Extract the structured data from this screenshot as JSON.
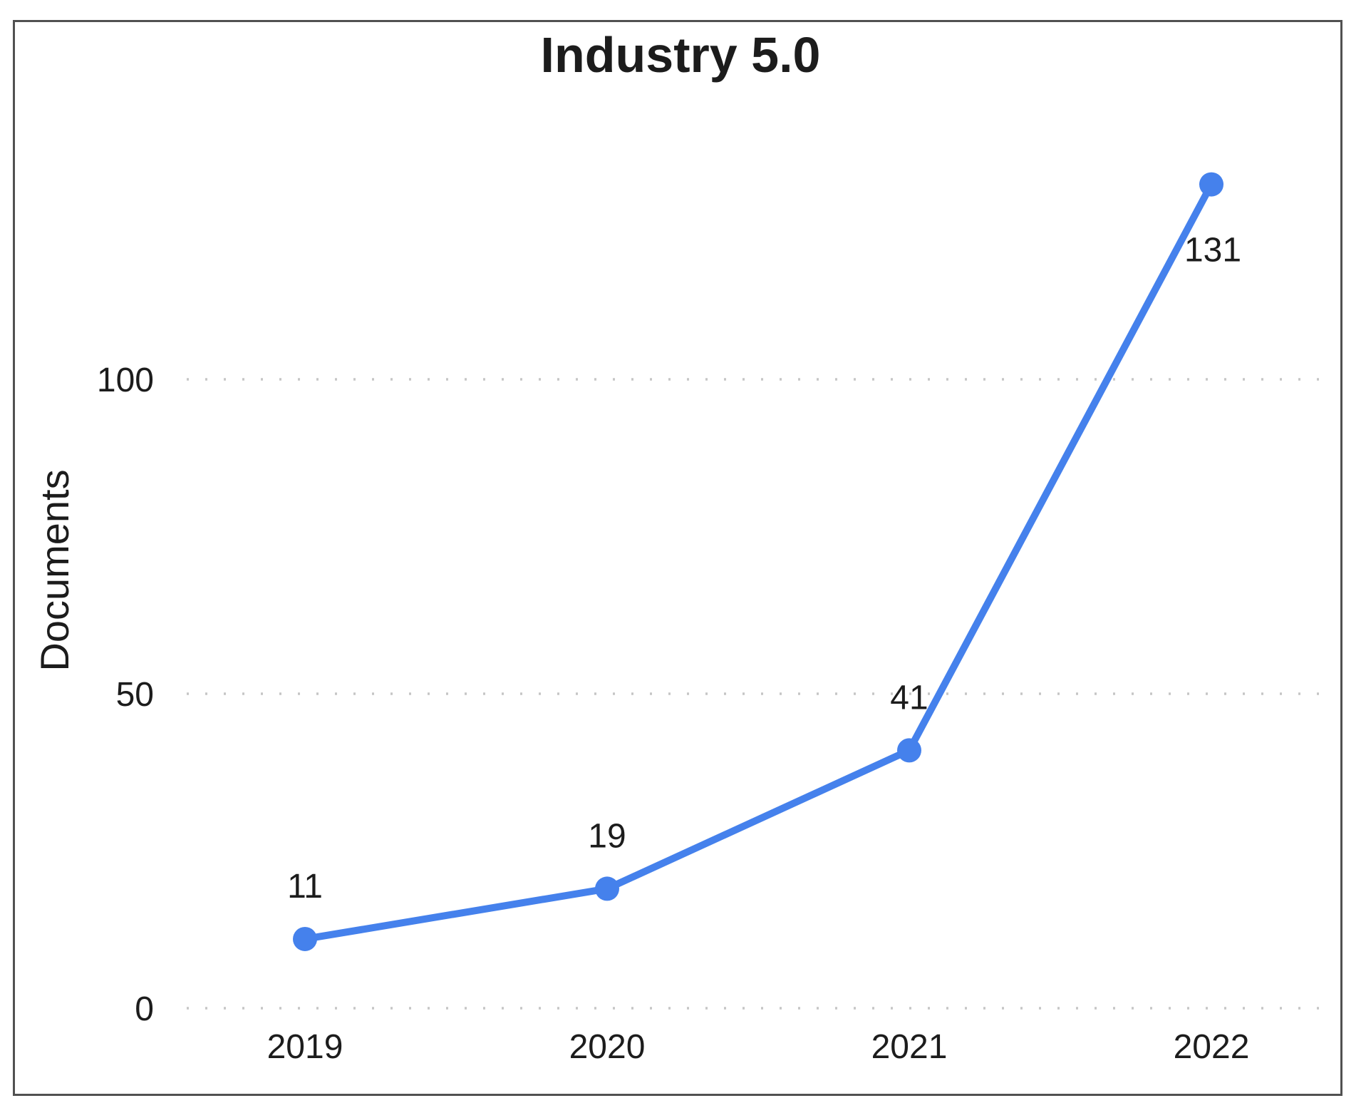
{
  "chart_data": {
    "type": "line",
    "title": "Industry 5.0",
    "ylabel": "Documents",
    "xlabel": "",
    "categories": [
      "2019",
      "2020",
      "2021",
      "2022"
    ],
    "values": [
      11,
      19,
      41,
      131
    ],
    "yticks": [
      0,
      50,
      100
    ],
    "ylim": [
      0,
      157
    ],
    "grid": "horizontal-dotted",
    "legend_position": "none",
    "marker_shape": "circle",
    "colors": {
      "line": "#4581ec",
      "marker": "#4581ec",
      "gridline": "#c6c6c6",
      "frame_border": "#515151",
      "text": "#1c1c1c",
      "background": "#ffffff"
    }
  }
}
